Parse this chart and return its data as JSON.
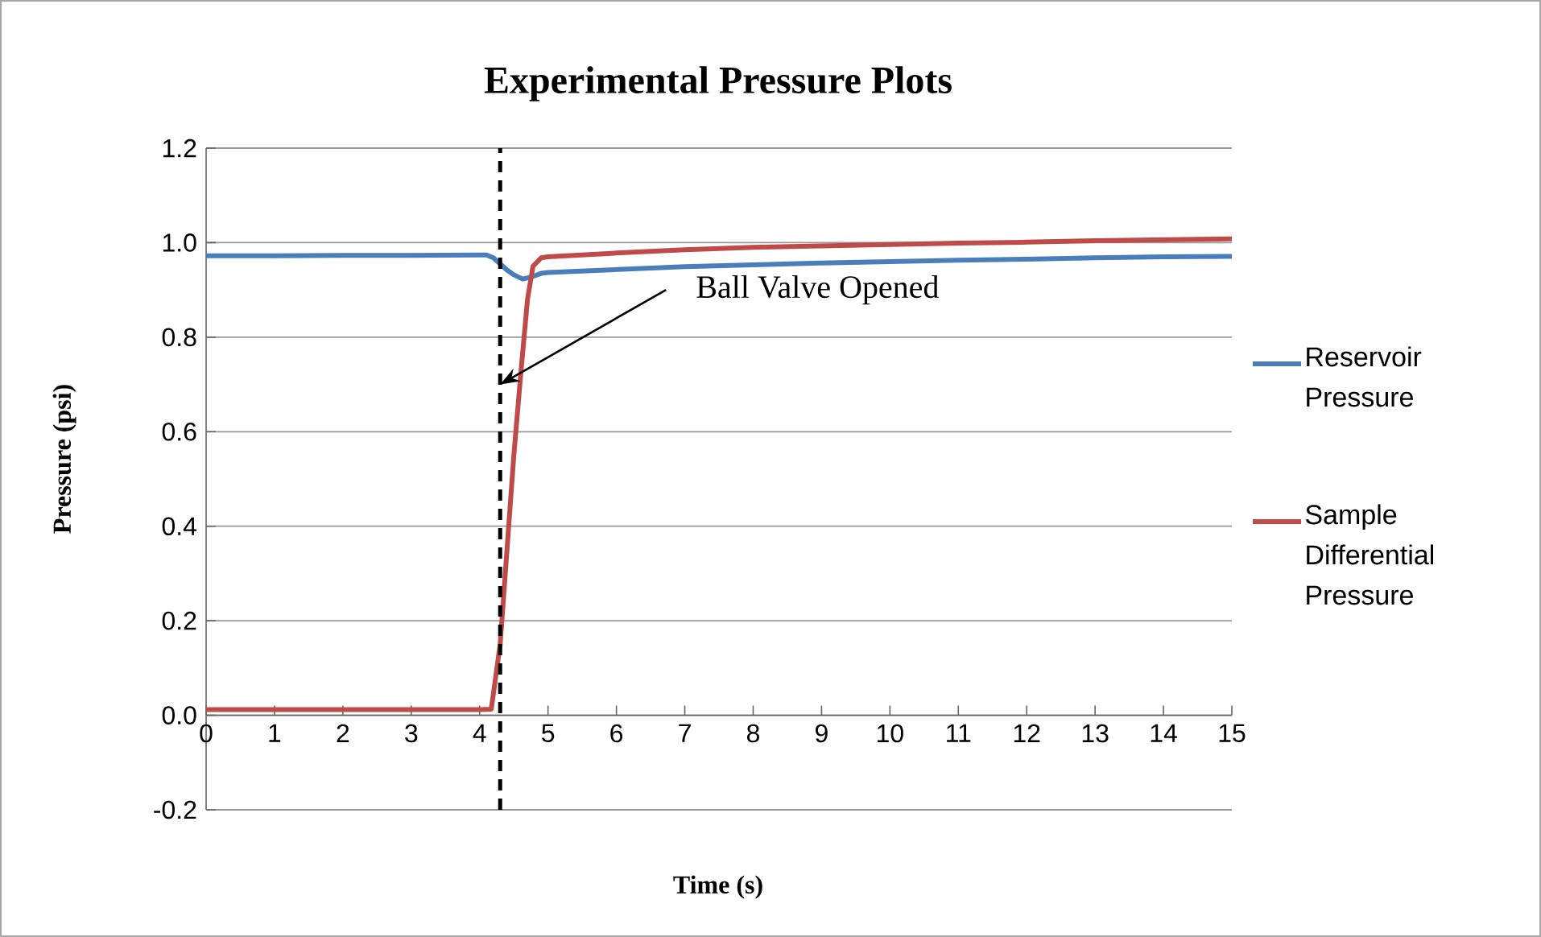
{
  "chart_data": {
    "type": "line",
    "title": "Experimental Pressure Plots",
    "xlabel": "Time (s)",
    "ylabel": "Pressure (psi)",
    "xlim": [
      0,
      15
    ],
    "xticks": [
      0,
      1,
      2,
      3,
      4,
      5,
      6,
      7,
      8,
      9,
      10,
      11,
      12,
      13,
      14,
      15
    ],
    "ylim": [
      -0.2,
      1.2
    ],
    "yticks": [
      -0.2,
      {
        "value": 0,
        "label": "0.0"
      },
      0.2,
      0.4,
      0.6,
      0.8,
      {
        "value": 1,
        "label": "1.0"
      },
      1.2
    ],
    "grid": "y",
    "legend": "right",
    "series": [
      {
        "name": "Reservoir Pressure",
        "color": "#4a7ebb",
        "x": [
          0,
          1,
          2,
          3,
          4,
          4.1,
          4.2,
          4.3,
          4.4,
          4.5,
          4.63,
          4.75,
          4.9,
          5,
          6,
          7,
          8,
          9,
          10,
          11,
          12,
          13,
          14,
          15
        ],
        "values": [
          0.972,
          0.972,
          0.973,
          0.973,
          0.974,
          0.974,
          0.968,
          0.955,
          0.942,
          0.932,
          0.923,
          0.927,
          0.935,
          0.937,
          0.943,
          0.949,
          0.953,
          0.957,
          0.96,
          0.963,
          0.965,
          0.968,
          0.97,
          0.971
        ]
      },
      {
        "name": "Sample Differential Pressure",
        "color": "#be4b48",
        "x": [
          0,
          1,
          2,
          3,
          4,
          4.17,
          4.3,
          4.4,
          4.5,
          4.6,
          4.7,
          4.78,
          4.9,
          5,
          6,
          7,
          8,
          9,
          10,
          11,
          12,
          13,
          14,
          15
        ],
        "values": [
          0.012,
          0.012,
          0.012,
          0.012,
          0.012,
          0.013,
          0.15,
          0.35,
          0.55,
          0.72,
          0.88,
          0.95,
          0.968,
          0.97,
          0.978,
          0.985,
          0.99,
          0.993,
          0.996,
          0.999,
          1.001,
          1.004,
          1.006,
          1.008
        ]
      }
    ],
    "ref_lines": [
      {
        "axis": "x",
        "value": 4.3,
        "line_style": "dashed",
        "color": "#000000"
      }
    ],
    "annotations": [
      {
        "text": "Ball Valve Opened",
        "x": 4.3,
        "y": 0.7
      }
    ]
  }
}
